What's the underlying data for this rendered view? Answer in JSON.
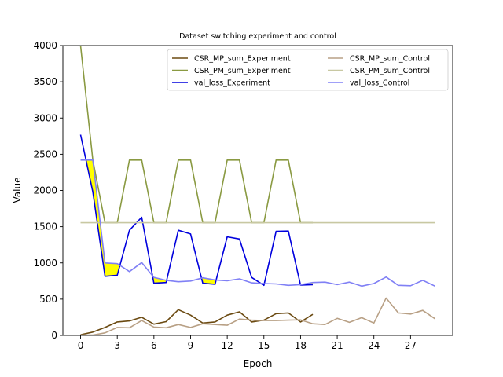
{
  "chart_data": {
    "type": "line",
    "title": "Dataset switching experiment and control",
    "xlabel": "Epoch",
    "ylabel": "Value",
    "xlim": [
      -1.45,
      30.45
    ],
    "ylim": [
      0,
      4000
    ],
    "x_ticks": [
      0,
      3,
      6,
      9,
      12,
      15,
      18,
      21,
      24,
      27
    ],
    "y_ticks": [
      0,
      500,
      1000,
      1500,
      2000,
      2500,
      3000,
      3500,
      4000
    ],
    "grid": false,
    "legend_position": "top-right",
    "fill_between": {
      "upper_series": "val_loss_Control",
      "lower_series": "val_loss_Experiment",
      "where": "Control above Experiment",
      "color": "#ffff00"
    },
    "series": [
      {
        "name": "CSR_MP_sum_Experiment",
        "color": "#6b4a11",
        "x": [
          0,
          1,
          2,
          3,
          4,
          5,
          6,
          7,
          8,
          9,
          10,
          11,
          12,
          13,
          14,
          15,
          16,
          17,
          18,
          19
        ],
        "values": [
          10,
          45,
          110,
          185,
          200,
          250,
          155,
          190,
          355,
          280,
          170,
          185,
          280,
          325,
          185,
          210,
          300,
          310,
          185,
          290
        ]
      },
      {
        "name": "CSR_PM_sum_Experiment",
        "color": "#8a9a42",
        "x": [
          0,
          1,
          2,
          3,
          4,
          5,
          6,
          7,
          8,
          9,
          10,
          11,
          12,
          13,
          14,
          15,
          16,
          17,
          18,
          19
        ],
        "values": [
          4000,
          2420,
          1555,
          1555,
          2420,
          2420,
          1555,
          1555,
          2420,
          2420,
          1555,
          1555,
          2420,
          2420,
          1555,
          1555,
          2420,
          2420,
          1555,
          1555
        ]
      },
      {
        "name": "val_loss_Experiment",
        "color": "#0000dd",
        "x": [
          0,
          1,
          2,
          3,
          4,
          5,
          6,
          7,
          8,
          9,
          10,
          11,
          12,
          13,
          14,
          15,
          16,
          17,
          18,
          19
        ],
        "values": [
          2770,
          1980,
          815,
          830,
          1450,
          1630,
          720,
          730,
          1450,
          1400,
          720,
          705,
          1360,
          1330,
          800,
          690,
          1435,
          1440,
          695,
          700
        ]
      },
      {
        "name": "CSR_MP_sum_Control",
        "color": "#b8a085",
        "x": [
          0,
          1,
          2,
          3,
          4,
          5,
          6,
          7,
          8,
          9,
          10,
          11,
          12,
          13,
          14,
          15,
          16,
          17,
          18,
          19,
          20,
          21,
          22,
          23,
          24,
          25,
          26,
          27,
          28,
          29
        ],
        "values": [
          5,
          5,
          35,
          110,
          105,
          205,
          115,
          105,
          150,
          110,
          160,
          150,
          140,
          225,
          210,
          205,
          205,
          210,
          215,
          160,
          150,
          235,
          180,
          245,
          170,
          515,
          310,
          295,
          345,
          230
        ]
      },
      {
        "name": "CSR_PM_sum_Control",
        "color": "#c8c8a2",
        "x": [
          0,
          1,
          2,
          3,
          4,
          5,
          6,
          7,
          8,
          9,
          10,
          11,
          12,
          13,
          14,
          15,
          16,
          17,
          18,
          19,
          20,
          21,
          22,
          23,
          24,
          25,
          26,
          27,
          28,
          29
        ],
        "values": [
          1555,
          1555,
          1555,
          1555,
          1555,
          1555,
          1555,
          1555,
          1555,
          1555,
          1555,
          1555,
          1555,
          1555,
          1555,
          1555,
          1555,
          1555,
          1555,
          1555,
          1555,
          1555,
          1555,
          1555,
          1555,
          1555,
          1555,
          1555,
          1555,
          1555
        ]
      },
      {
        "name": "val_loss_Control",
        "color": "#8080f5",
        "x": [
          0,
          1,
          2,
          3,
          4,
          5,
          6,
          7,
          8,
          9,
          10,
          11,
          12,
          13,
          14,
          15,
          16,
          17,
          18,
          19,
          20,
          21,
          22,
          23,
          24,
          25,
          26,
          27,
          28,
          29
        ],
        "values": [
          2420,
          2420,
          1000,
          990,
          880,
          1005,
          800,
          760,
          740,
          750,
          795,
          765,
          755,
          780,
          725,
          715,
          710,
          690,
          700,
          730,
          735,
          700,
          735,
          680,
          715,
          805,
          690,
          685,
          760,
          680
        ]
      }
    ]
  }
}
